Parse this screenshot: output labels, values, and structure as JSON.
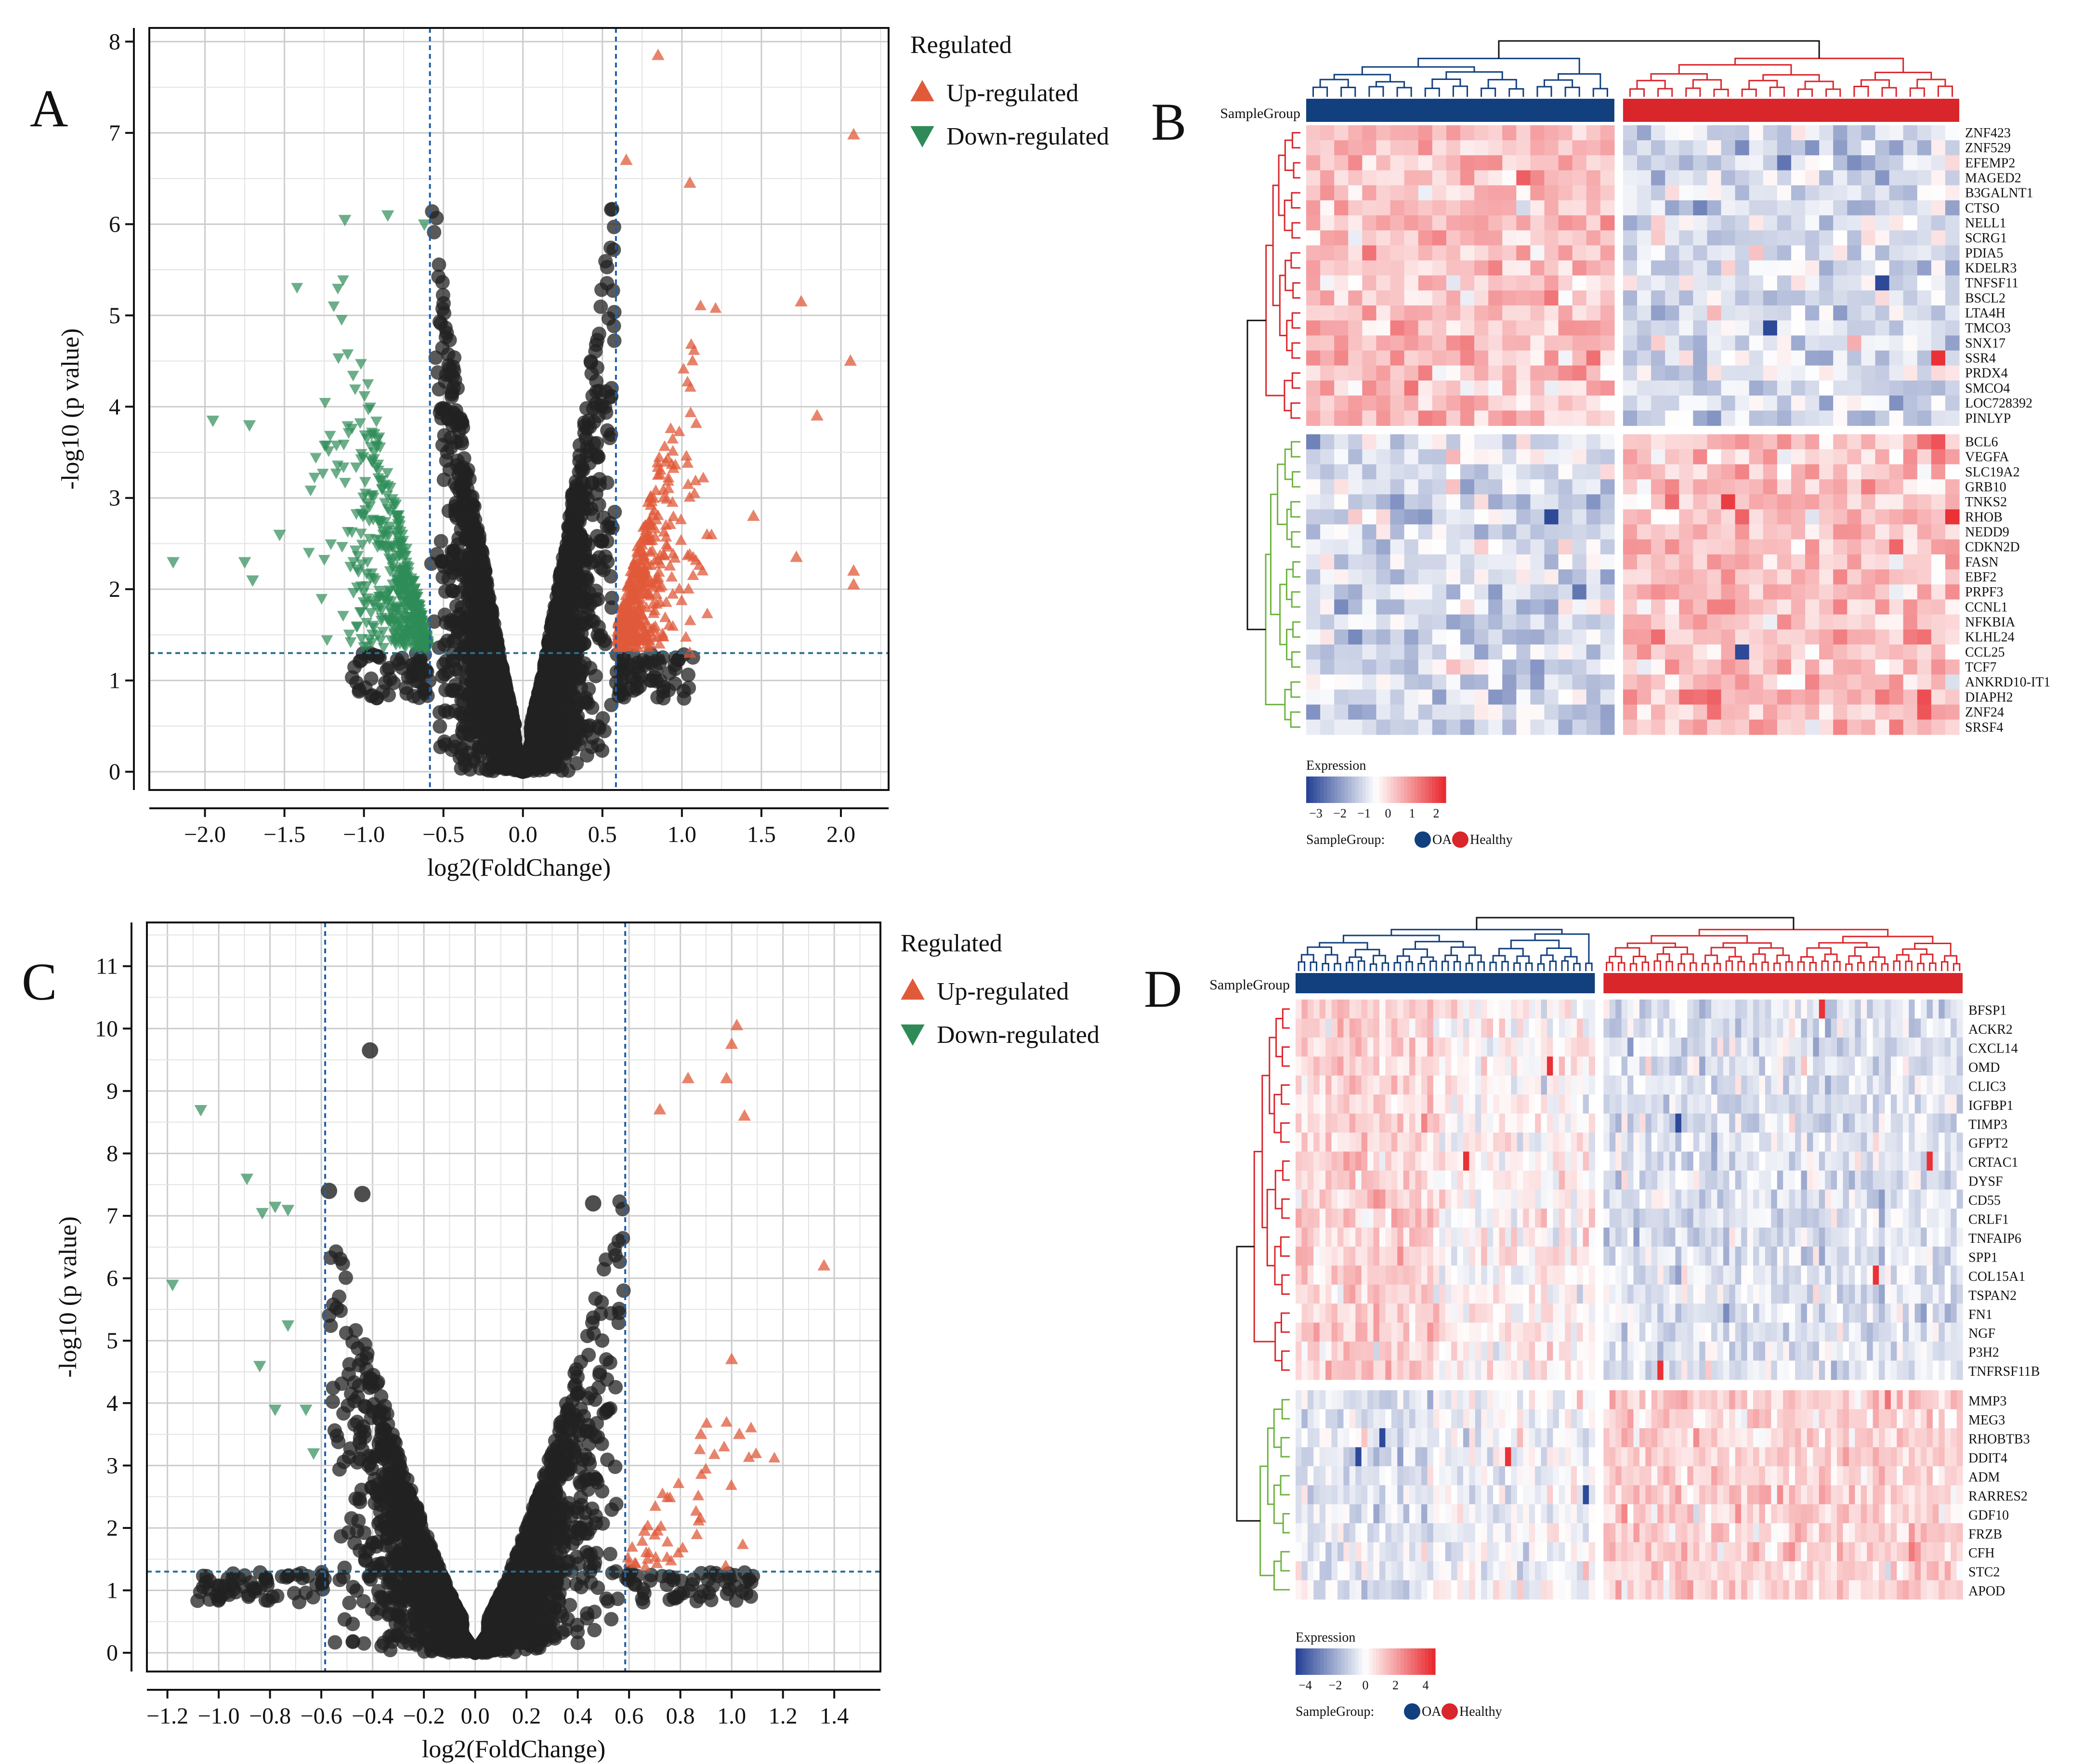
{
  "panels": {
    "A": "A",
    "B": "B",
    "C": "C",
    "D": "D"
  },
  "colors": {
    "up": "#e05a3a",
    "down": "#2e8b57",
    "ns": "#222222",
    "threshold": "#1f5fa8",
    "oa": "#123f7e",
    "healthy": "#d9262b",
    "low": "#223f93",
    "high": "#e8262b"
  },
  "chart_data": [
    {
      "panel": "A",
      "type": "scatter",
      "xlabel": "log2(FoldChange)",
      "ylabel": "-log10 (p value)",
      "xlim": [
        -2.35,
        2.3
      ],
      "ylim": [
        -0.2,
        8.15
      ],
      "xticks": [
        -2.0,
        -1.5,
        -1.0,
        -0.5,
        0.0,
        0.5,
        1.0,
        1.5,
        2.0
      ],
      "xtick_labels": [
        "−2.0",
        "−1.5",
        "−1.0",
        "−0.5",
        "0.0",
        "0.5",
        "1.0",
        "1.5",
        "2.0"
      ],
      "yticks": [
        0,
        1,
        2,
        3,
        4,
        5,
        6,
        7,
        8
      ],
      "thresholds": {
        "x": [
          -0.585,
          0.585
        ],
        "y": 1.3
      },
      "grid": true,
      "legend": {
        "title": "Regulated",
        "items": [
          "Up-regulated",
          "Down-regulated"
        ],
        "position": "right"
      },
      "ns_cloud": {
        "ymax": 6.7,
        "spread": 0.58
      },
      "highlight_points": [
        {
          "x": 0.85,
          "y": 7.85,
          "group": "up"
        },
        {
          "x": 2.08,
          "y": 6.98,
          "group": "up"
        },
        {
          "x": 0.65,
          "y": 6.7,
          "group": "up"
        },
        {
          "x": 1.05,
          "y": 6.45,
          "group": "up"
        },
        {
          "x": 1.75,
          "y": 5.15,
          "group": "up"
        },
        {
          "x": 2.06,
          "y": 4.5,
          "group": "up"
        },
        {
          "x": 1.85,
          "y": 3.9,
          "group": "up"
        },
        {
          "x": 1.72,
          "y": 2.35,
          "group": "up"
        },
        {
          "x": 2.08,
          "y": 2.2,
          "group": "up"
        },
        {
          "x": 2.08,
          "y": 2.05,
          "group": "up"
        },
        {
          "x": 1.45,
          "y": 2.8,
          "group": "up"
        },
        {
          "x": 1.05,
          "y": 1.3,
          "group": "up"
        },
        {
          "x": -2.2,
          "y": 2.3,
          "group": "down"
        },
        {
          "x": -1.95,
          "y": 3.85,
          "group": "down"
        },
        {
          "x": -1.72,
          "y": 3.8,
          "group": "down"
        },
        {
          "x": -1.75,
          "y": 2.3,
          "group": "down"
        },
        {
          "x": -1.7,
          "y": 2.1,
          "group": "down"
        },
        {
          "x": -1.53,
          "y": 2.6,
          "group": "down"
        },
        {
          "x": -1.12,
          "y": 6.05,
          "group": "down"
        },
        {
          "x": -0.85,
          "y": 6.1,
          "group": "down"
        },
        {
          "x": -0.62,
          "y": 6.0,
          "group": "down"
        }
      ],
      "scatter_counts": {
        "up": 420,
        "down": 480,
        "ns": 3200
      }
    },
    {
      "panel": "C",
      "type": "scatter",
      "xlabel": "log2(FoldChange)",
      "ylabel": "-log10 (p value)",
      "xlim": [
        -1.28,
        1.58
      ],
      "ylim": [
        -0.3,
        11.7
      ],
      "xticks": [
        -1.2,
        -1.0,
        -0.8,
        -0.6,
        -0.4,
        -0.2,
        0.0,
        0.2,
        0.4,
        0.6,
        0.8,
        1.0,
        1.2,
        1.4
      ],
      "xtick_labels": [
        "−1.2",
        "−1.0",
        "−0.8",
        "−0.6",
        "−0.4",
        "−0.2",
        "0.0",
        "0.2",
        "0.4",
        "0.6",
        "0.8",
        "1.0",
        "1.2",
        "1.4"
      ],
      "yticks": [
        0,
        1,
        2,
        3,
        4,
        5,
        6,
        7,
        8,
        9,
        10,
        11
      ],
      "thresholds": {
        "x": [
          -0.585,
          0.585
        ],
        "y": 1.3
      },
      "grid": true,
      "legend": {
        "title": "Regulated",
        "items": [
          "Up-regulated",
          "Down-regulated"
        ],
        "position": "right"
      },
      "ns_cloud": {
        "ymax": 7.6,
        "spread": 0.58
      },
      "highlight_points": [
        {
          "x": -1.18,
          "y": 5.9,
          "group": "down"
        },
        {
          "x": -1.07,
          "y": 8.7,
          "group": "down"
        },
        {
          "x": -0.89,
          "y": 7.6,
          "group": "down"
        },
        {
          "x": -0.83,
          "y": 7.05,
          "group": "down"
        },
        {
          "x": -0.78,
          "y": 7.15,
          "group": "down"
        },
        {
          "x": -0.73,
          "y": 7.1,
          "group": "down"
        },
        {
          "x": -0.73,
          "y": 5.25,
          "group": "down"
        },
        {
          "x": -0.84,
          "y": 4.6,
          "group": "down"
        },
        {
          "x": -0.78,
          "y": 3.9,
          "group": "down"
        },
        {
          "x": -0.66,
          "y": 3.9,
          "group": "down"
        },
        {
          "x": -0.63,
          "y": 3.2,
          "group": "down"
        },
        {
          "x": 1.02,
          "y": 10.05,
          "group": "up"
        },
        {
          "x": 1.0,
          "y": 9.75,
          "group": "up"
        },
        {
          "x": 0.98,
          "y": 9.2,
          "group": "up"
        },
        {
          "x": 0.83,
          "y": 9.2,
          "group": "up"
        },
        {
          "x": 0.72,
          "y": 8.7,
          "group": "up"
        },
        {
          "x": 1.05,
          "y": 8.6,
          "group": "up"
        },
        {
          "x": 1.36,
          "y": 6.2,
          "group": "up"
        },
        {
          "x": 1.0,
          "y": 4.7,
          "group": "up"
        },
        {
          "x": 1.03,
          "y": 3.5,
          "group": "up"
        },
        {
          "x": 0.88,
          "y": 3.5,
          "group": "up"
        },
        {
          "x": 0.66,
          "y": 1.95,
          "group": "up"
        }
      ],
      "ns_special": [
        {
          "x": -0.41,
          "y": 9.65
        },
        {
          "x": -0.57,
          "y": 7.4
        },
        {
          "x": -0.44,
          "y": 7.35
        },
        {
          "x": 0.46,
          "y": 7.2
        }
      ],
      "scatter_counts": {
        "up": 45,
        "down": 0,
        "ns": 2600
      }
    }
  ],
  "heatmap_B": {
    "sample_group_label": "SampleGroup",
    "genes_up": [
      "ZNF423",
      "ZNF529",
      "EFEMP2",
      "MAGED2",
      "B3GALNT1",
      "CTSO",
      "NELL1",
      "SCRG1",
      "PDIA5",
      "KDELR3",
      "TNFSF11",
      "BSCL2",
      "LTA4H",
      "TMCO3",
      "SNX17",
      "SSR4",
      "PRDX4",
      "SMCO4",
      "LOC728392",
      "PINLYP"
    ],
    "genes_down": [
      "BCL6",
      "VEGFA",
      "SLC19A2",
      "GRB10",
      "TNKS2",
      "RHOB",
      "NEDD9",
      "CDKN2D",
      "FASN",
      "EBF2",
      "PRPF3",
      "CCNL1",
      "NFKBIA",
      "KLHL24",
      "CCL25",
      "TCF7",
      "ANKRD10-IT1",
      "DIAPH2",
      "ZNF24",
      "SRSF4"
    ],
    "n_oa": 22,
    "n_healthy": 24,
    "legend_title": "Expression",
    "legend_ticks": [
      "−3",
      "−2",
      "−1",
      "0",
      "1",
      "2"
    ],
    "group_legend": {
      "label": "SampleGroup:",
      "items": [
        "OA",
        "Healthy"
      ]
    }
  },
  "heatmap_D": {
    "sample_group_label": "SampleGroup",
    "genes_up": [
      "BFSP1",
      "ACKR2",
      "CXCL14",
      "OMD",
      "CLIC3",
      "IGFBP1",
      "TIMP3",
      "GFPT2",
      "CRTAC1",
      "DYSF",
      "CD55",
      "CRLF1",
      "TNFAIP6",
      "SPP1",
      "COL15A1",
      "TSPAN2",
      "FN1",
      "NGF",
      "P3H2",
      "TNFRSF11B"
    ],
    "genes_down": [
      "MMP3",
      "MEG3",
      "RHOBTB3",
      "DDIT4",
      "ADM",
      "RARRES2",
      "GDF10",
      "FRZB",
      "CFH",
      "STC2",
      "APOD"
    ],
    "n_oa": 50,
    "n_healthy": 60,
    "legend_title": "Expression",
    "legend_ticks": [
      "−4",
      "−2",
      "0",
      "2",
      "4"
    ],
    "group_legend": {
      "label": "SampleGroup:",
      "items": [
        "OA",
        "Healthy"
      ]
    }
  }
}
